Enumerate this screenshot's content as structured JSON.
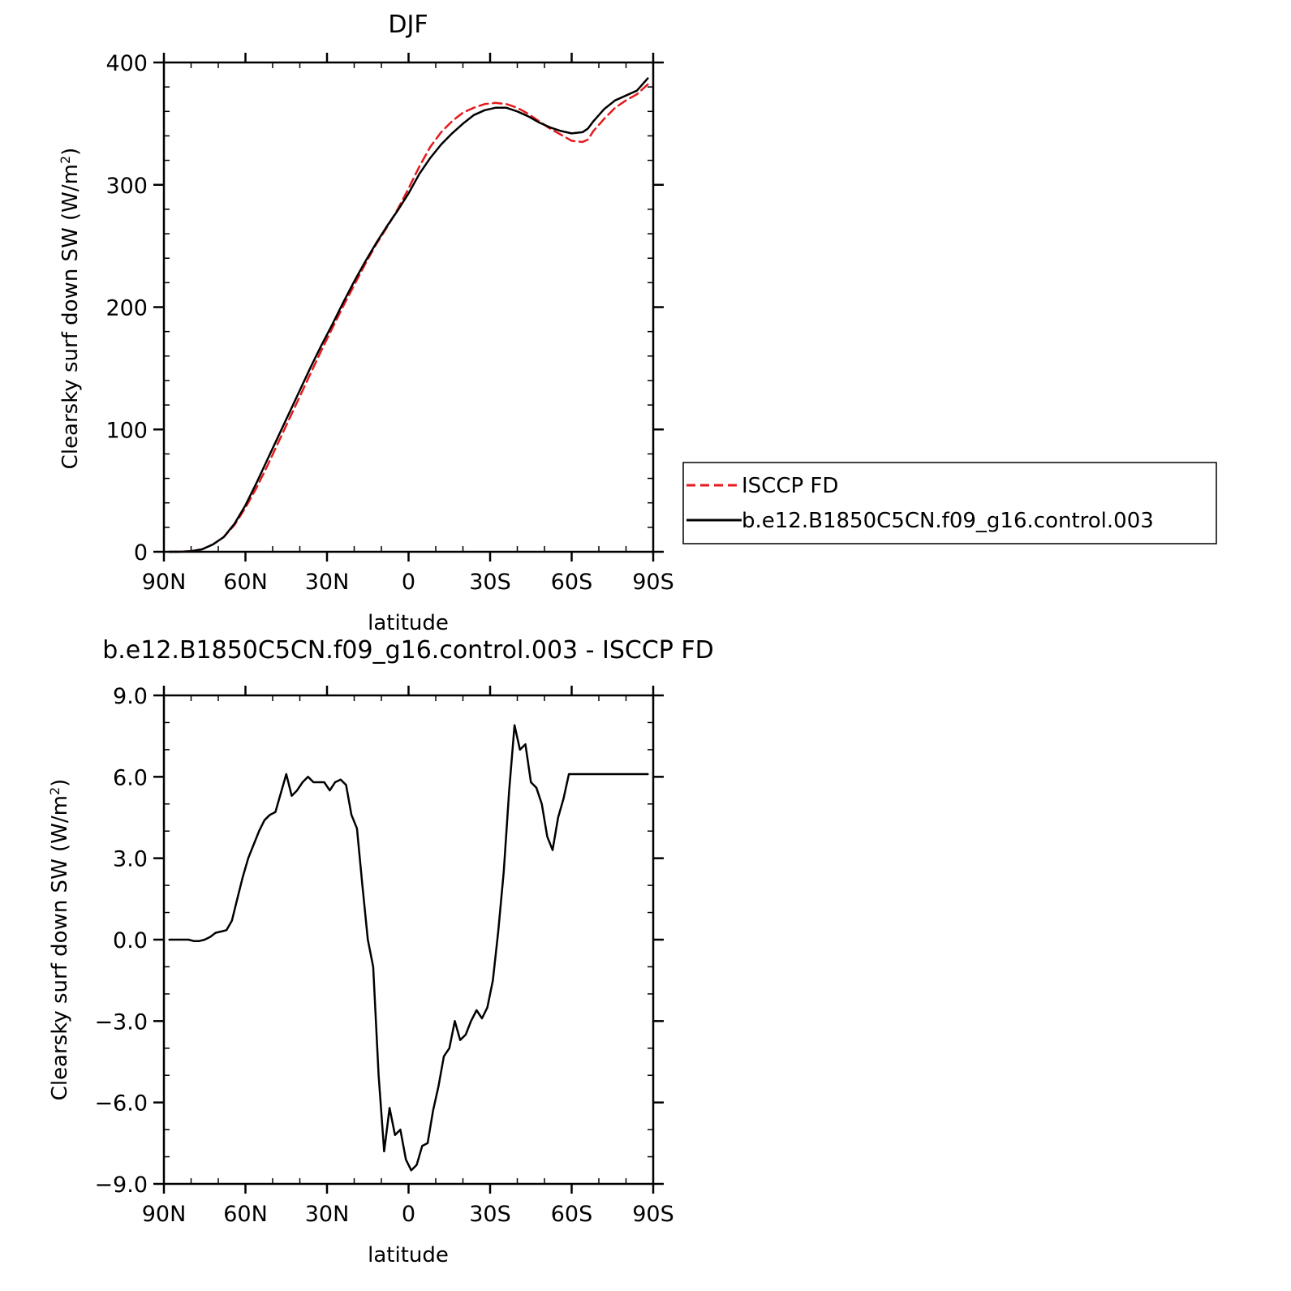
{
  "chart_data": [
    {
      "type": "line",
      "title": "DJF",
      "xlabel": "latitude",
      "ylabel": "Clearsky surf down SW (W/m",
      "ylabel_sup": "2",
      "ylabel_close": ")",
      "xlim": [
        90,
        -90
      ],
      "ylim": [
        0,
        400
      ],
      "xticks": [
        90,
        60,
        30,
        0,
        -30,
        -60,
        -90
      ],
      "xtick_labels": [
        "90N",
        "60N",
        "30N",
        "0",
        "30S",
        "60S",
        "90S"
      ],
      "yticks": [
        0,
        100,
        200,
        300,
        400
      ],
      "ytick_labels": [
        "0",
        "100",
        "200",
        "300",
        "400"
      ],
      "legend": {
        "placement": "right",
        "entries": [
          "ISCCP FD",
          "b.e12.B1850C5CN.f09_g16.control.003"
        ]
      },
      "series": [
        {
          "name": "ISCCP FD",
          "color": "#e41a1c",
          "dash": "dashed",
          "x": [
            88,
            84,
            80,
            76,
            72,
            68,
            64,
            60,
            56,
            52,
            48,
            44,
            40,
            36,
            32,
            28,
            24,
            20,
            16,
            12,
            8,
            4,
            0,
            -4,
            -8,
            -12,
            -16,
            -20,
            -24,
            -28,
            -32,
            -36,
            -40,
            -44,
            -48,
            -52,
            -56,
            -60,
            -64,
            -66,
            -68,
            -72,
            -76,
            -80,
            -84,
            -88
          ],
          "y": [
            0,
            0,
            0.5,
            2,
            6,
            12,
            22,
            36,
            52,
            70,
            89,
            108,
            127,
            146,
            165,
            183,
            201,
            218,
            235,
            251,
            265,
            280,
            297,
            315,
            331,
            343,
            352,
            359,
            363,
            366,
            367,
            366,
            363,
            358,
            352,
            346,
            341,
            336,
            335,
            337,
            344,
            354,
            363,
            369,
            374,
            382
          ]
        },
        {
          "name": "b.e12.B1850C5CN.f09_g16.control.003",
          "color": "#000000",
          "dash": "solid",
          "x": [
            88,
            84,
            80,
            76,
            72,
            68,
            64,
            60,
            56,
            52,
            48,
            44,
            40,
            36,
            32,
            28,
            24,
            20,
            16,
            12,
            8,
            4,
            0,
            -4,
            -8,
            -12,
            -16,
            -20,
            -24,
            -28,
            -32,
            -36,
            -40,
            -44,
            -48,
            -52,
            -56,
            -60,
            -64,
            -66,
            -68,
            -72,
            -76,
            -80,
            -84,
            -88
          ],
          "y": [
            0,
            0,
            0.5,
            2,
            6,
            12,
            23,
            38,
            56,
            75,
            94,
            113,
            132,
            151,
            169,
            186,
            204,
            221,
            237,
            252,
            266,
            279,
            293,
            309,
            322,
            333,
            342,
            350,
            357,
            361,
            363,
            363,
            360,
            356,
            351,
            347,
            344,
            342,
            343,
            346,
            352,
            362,
            369,
            373,
            377,
            387
          ]
        }
      ]
    },
    {
      "type": "line",
      "title": "b.e12.B1850C5CN.f09_g16.control.003 - ISCCP FD",
      "xlabel": "latitude",
      "ylabel": "Clearsky surf down SW (W/m",
      "ylabel_sup": "2",
      "ylabel_close": ")",
      "xlim": [
        90,
        -90
      ],
      "ylim": [
        -9,
        9
      ],
      "xticks": [
        90,
        60,
        30,
        0,
        -30,
        -60,
        -90
      ],
      "xtick_labels": [
        "90N",
        "60N",
        "30N",
        "0",
        "30S",
        "60S",
        "90S"
      ],
      "yticks": [
        -9,
        -6,
        -3,
        0,
        3,
        6,
        9
      ],
      "ytick_labels": [
        "−9.0",
        "−6.0",
        "−3.0",
        "0.0",
        "3.0",
        "6.0",
        "9.0"
      ],
      "series": [
        {
          "color": "#000000",
          "dash": "solid",
          "x": [
            88,
            85,
            83,
            81,
            79,
            77,
            75,
            73,
            71,
            69,
            67,
            65,
            63,
            61,
            59,
            57,
            55,
            53,
            51,
            49,
            47,
            45,
            43,
            41,
            39,
            37,
            35,
            33,
            31,
            29,
            27,
            25,
            23,
            21,
            19,
            17,
            15,
            13,
            11,
            9,
            7,
            5,
            3,
            1,
            -1,
            -3,
            -5,
            -7,
            -9,
            -11,
            -13,
            -15,
            -17,
            -19,
            -21,
            -23,
            -25,
            -27,
            -29,
            -31,
            -33,
            -35,
            -37,
            -39,
            -41,
            -43,
            -45,
            -47,
            -49,
            -51,
            -53,
            -55,
            -57,
            -59,
            -61,
            -63,
            -65,
            -67,
            -69,
            -71,
            -73,
            -75,
            -77,
            -79,
            -81,
            -83,
            -85,
            -88
          ],
          "y": [
            0.0,
            0.0,
            0.0,
            0.0,
            -0.05,
            -0.05,
            0.0,
            0.1,
            0.25,
            0.3,
            0.35,
            0.7,
            1.5,
            2.3,
            3.0,
            3.5,
            4.0,
            4.4,
            4.6,
            4.7,
            5.4,
            6.1,
            5.3,
            5.5,
            5.8,
            6.0,
            5.8,
            5.8,
            5.8,
            5.5,
            5.8,
            5.9,
            5.7,
            4.6,
            4.1,
            2.0,
            0.0,
            -1.0,
            -5.0,
            -7.8,
            -6.2,
            -7.2,
            -7.0,
            -8.1,
            -8.5,
            -8.3,
            -7.6,
            -7.5,
            -6.3,
            -5.4,
            -4.3,
            -4.0,
            -3.0,
            -3.7,
            -3.5,
            -3.0,
            -2.6,
            -2.9,
            -2.5,
            -1.5,
            0.3,
            2.5,
            5.5,
            7.9,
            7.0,
            7.2,
            5.8,
            5.6,
            5.0,
            3.8,
            3.3,
            4.5,
            5.2,
            6.1,
            6.1,
            6.1,
            6.1,
            6.1,
            6.1,
            6.1,
            6.1,
            6.1,
            6.1,
            6.1,
            6.1,
            6.1,
            6.1,
            6.1
          ]
        }
      ]
    }
  ]
}
